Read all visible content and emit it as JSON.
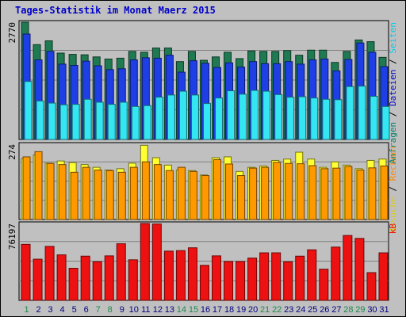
{
  "title": "Tages-Statistik im Monat Maerz 2015",
  "colors": {
    "background": "#c0c0c0",
    "hits": "#1f7a52",
    "files": "#1f3fe6",
    "pages": "#33e6f2",
    "visits": "#ffff33",
    "sites": "#ff9900",
    "kbytes": "#ee1111",
    "panel_bg": "#c0c0c0",
    "grid": "#808080",
    "weekend_tick": "#1a8a4a",
    "weekday_tick": "#000080"
  },
  "chart_data": [
    {
      "type": "bar",
      "name": "top",
      "max_label": "2770",
      "ylim": [
        0,
        2770
      ],
      "grid": true,
      "right_label": [
        {
          "text": "Anfragen",
          "color": "#00806a"
        },
        {
          "text": " / ",
          "color": "#000000"
        },
        {
          "text": "Dateien",
          "color": "#0000cc"
        },
        {
          "text": " / ",
          "color": "#000000"
        },
        {
          "text": "Seiten",
          "color": "#00ccee"
        }
      ],
      "categories": [
        "1",
        "2",
        "3",
        "4",
        "5",
        "6",
        "7",
        "8",
        "9",
        "10",
        "11",
        "12",
        "13",
        "14",
        "15",
        "16",
        "17",
        "18",
        "19",
        "20",
        "21",
        "22",
        "23",
        "24",
        "25",
        "26",
        "27",
        "28",
        "29",
        "30",
        "31"
      ],
      "series": [
        {
          "name": "Anfragen",
          "values": [
            2770,
            2240,
            2330,
            2040,
            2010,
            2000,
            1950,
            1900,
            1920,
            2080,
            2060,
            2160,
            2160,
            1840,
            2080,
            1870,
            1950,
            2060,
            1910,
            2090,
            2080,
            2080,
            2100,
            1990,
            2110,
            2110,
            1820,
            2080,
            2350,
            2310,
            1940
          ]
        },
        {
          "name": "Dateien",
          "values": [
            2490,
            1880,
            2080,
            1780,
            1750,
            1850,
            1740,
            1650,
            1670,
            1880,
            1930,
            1920,
            1990,
            1590,
            1860,
            1800,
            1700,
            1810,
            1710,
            1840,
            1790,
            1790,
            1840,
            1780,
            1880,
            1900,
            1620,
            1890,
            2280,
            2060,
            1720
          ]
        },
        {
          "name": "Seiten",
          "values": [
            1370,
            910,
            860,
            820,
            830,
            950,
            880,
            830,
            880,
            780,
            800,
            1000,
            1050,
            1140,
            1050,
            850,
            980,
            1150,
            1070,
            1160,
            1140,
            1060,
            1000,
            1010,
            980,
            950,
            940,
            1250,
            1260,
            1020,
            780
          ]
        }
      ]
    },
    {
      "type": "bar",
      "name": "middle",
      "max_label": "274",
      "ylim": [
        0,
        274
      ],
      "grid": true,
      "right_label": [
        {
          "text": "Besuche",
          "color": "#ddcc00"
        },
        {
          "text": " / ",
          "color": "#000000"
        },
        {
          "text": "Rechner",
          "color": "#ff8800"
        }
      ],
      "categories": [
        "1",
        "2",
        "3",
        "4",
        "5",
        "6",
        "7",
        "8",
        "9",
        "10",
        "11",
        "12",
        "13",
        "14",
        "15",
        "16",
        "17",
        "18",
        "19",
        "20",
        "21",
        "22",
        "23",
        "24",
        "25",
        "26",
        "27",
        "28",
        "29",
        "30",
        "31"
      ],
      "series": [
        {
          "name": "Besuche",
          "values": [
            222,
            235,
            205,
            213,
            207,
            200,
            190,
            180,
            185,
            205,
            270,
            225,
            198,
            180,
            178,
            162,
            225,
            228,
            175,
            190,
            195,
            215,
            220,
            245,
            220,
            190,
            210,
            198,
            185,
            215,
            220
          ]
        },
        {
          "name": "Rechner",
          "values": [
            228,
            247,
            204,
            200,
            172,
            190,
            180,
            178,
            172,
            190,
            210,
            200,
            178,
            190,
            175,
            160,
            218,
            202,
            160,
            187,
            190,
            208,
            204,
            203,
            196,
            185,
            187,
            193,
            180,
            188,
            195
          ]
        }
      ]
    },
    {
      "type": "bar",
      "name": "bottom",
      "max_label": "76197",
      "ylim": [
        0,
        76197
      ],
      "grid": true,
      "right_label": [
        {
          "text": "kB",
          "color": "#ee1111"
        }
      ],
      "categories": [
        "1",
        "2",
        "3",
        "4",
        "5",
        "6",
        "7",
        "8",
        "9",
        "10",
        "11",
        "12",
        "13",
        "14",
        "15",
        "16",
        "17",
        "18",
        "19",
        "20",
        "21",
        "22",
        "23",
        "24",
        "25",
        "26",
        "27",
        "28",
        "29",
        "30",
        "31"
      ],
      "series": [
        {
          "name": "kB",
          "values": [
            55500,
            40800,
            53500,
            45100,
            31800,
            43800,
            38300,
            44100,
            56100,
            40200,
            76197,
            75700,
            48800,
            49300,
            52100,
            34700,
            44100,
            38500,
            38500,
            41900,
            47100,
            47100,
            38200,
            43800,
            50100,
            30900,
            52800,
            64300,
            61400,
            27500,
            47100
          ]
        }
      ]
    }
  ],
  "x_ticks": [
    {
      "label": "1",
      "weekend": true
    },
    {
      "label": "2",
      "weekend": false
    },
    {
      "label": "3",
      "weekend": false
    },
    {
      "label": "4",
      "weekend": false
    },
    {
      "label": "5",
      "weekend": false
    },
    {
      "label": "6",
      "weekend": false
    },
    {
      "label": "7",
      "weekend": true
    },
    {
      "label": "8",
      "weekend": true
    },
    {
      "label": "9",
      "weekend": false
    },
    {
      "label": "10",
      "weekend": false
    },
    {
      "label": "11",
      "weekend": false
    },
    {
      "label": "12",
      "weekend": false
    },
    {
      "label": "13",
      "weekend": false
    },
    {
      "label": "14",
      "weekend": true
    },
    {
      "label": "15",
      "weekend": true
    },
    {
      "label": "16",
      "weekend": false
    },
    {
      "label": "17",
      "weekend": false
    },
    {
      "label": "18",
      "weekend": false
    },
    {
      "label": "19",
      "weekend": false
    },
    {
      "label": "20",
      "weekend": false
    },
    {
      "label": "21",
      "weekend": true
    },
    {
      "label": "22",
      "weekend": true
    },
    {
      "label": "23",
      "weekend": false
    },
    {
      "label": "24",
      "weekend": false
    },
    {
      "label": "25",
      "weekend": false
    },
    {
      "label": "26",
      "weekend": false
    },
    {
      "label": "27",
      "weekend": false
    },
    {
      "label": "28",
      "weekend": true
    },
    {
      "label": "29",
      "weekend": true
    },
    {
      "label": "30",
      "weekend": false
    },
    {
      "label": "31",
      "weekend": false
    }
  ]
}
